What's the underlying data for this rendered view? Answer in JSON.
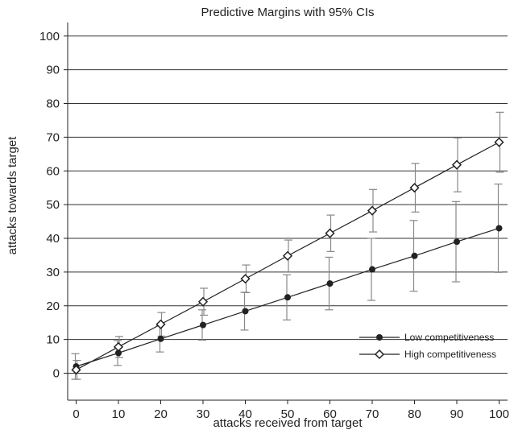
{
  "chart_data": {
    "type": "line",
    "title": "Predictive Margins with 95% CIs",
    "xlabel": "attacks received from target",
    "ylabel": "attacks towards target",
    "xlim": [
      -2,
      102
    ],
    "ylim": [
      -8,
      104
    ],
    "x": [
      0,
      10,
      20,
      30,
      40,
      50,
      60,
      70,
      80,
      90,
      100
    ],
    "xticks": [
      0,
      10,
      20,
      30,
      40,
      50,
      60,
      70,
      80,
      90,
      100
    ],
    "yticks": [
      0,
      10,
      20,
      30,
      40,
      50,
      60,
      70,
      80,
      90,
      100
    ],
    "grid": "horizontal",
    "legend_position": "bottom-right",
    "series": [
      {
        "name": "Low competitiveness",
        "marker": "filled-circle",
        "values": [
          2.0,
          6.0,
          10.2,
          14.3,
          18.4,
          22.5,
          26.6,
          30.8,
          34.8,
          39.0,
          43.0
        ],
        "ci_low": [
          -1.8,
          2.3,
          6.3,
          9.8,
          12.8,
          15.8,
          18.8,
          21.6,
          24.3,
          27.1,
          29.9
        ],
        "ci_high": [
          5.8,
          9.7,
          14.1,
          18.8,
          24.0,
          29.2,
          34.4,
          40.0,
          45.3,
          50.9,
          56.1
        ]
      },
      {
        "name": "High competitiveness",
        "marker": "hollow-diamond",
        "values": [
          1.0,
          7.8,
          14.5,
          21.2,
          28.0,
          34.8,
          41.5,
          48.2,
          55.0,
          61.8,
          68.5
        ],
        "ci_low": [
          -1.8,
          4.7,
          11.0,
          17.2,
          23.9,
          30.1,
          36.1,
          41.9,
          47.8,
          53.8,
          59.6
        ],
        "ci_high": [
          3.8,
          10.9,
          18.0,
          25.2,
          32.1,
          39.5,
          46.9,
          54.5,
          62.2,
          69.8,
          77.4
        ]
      }
    ]
  }
}
